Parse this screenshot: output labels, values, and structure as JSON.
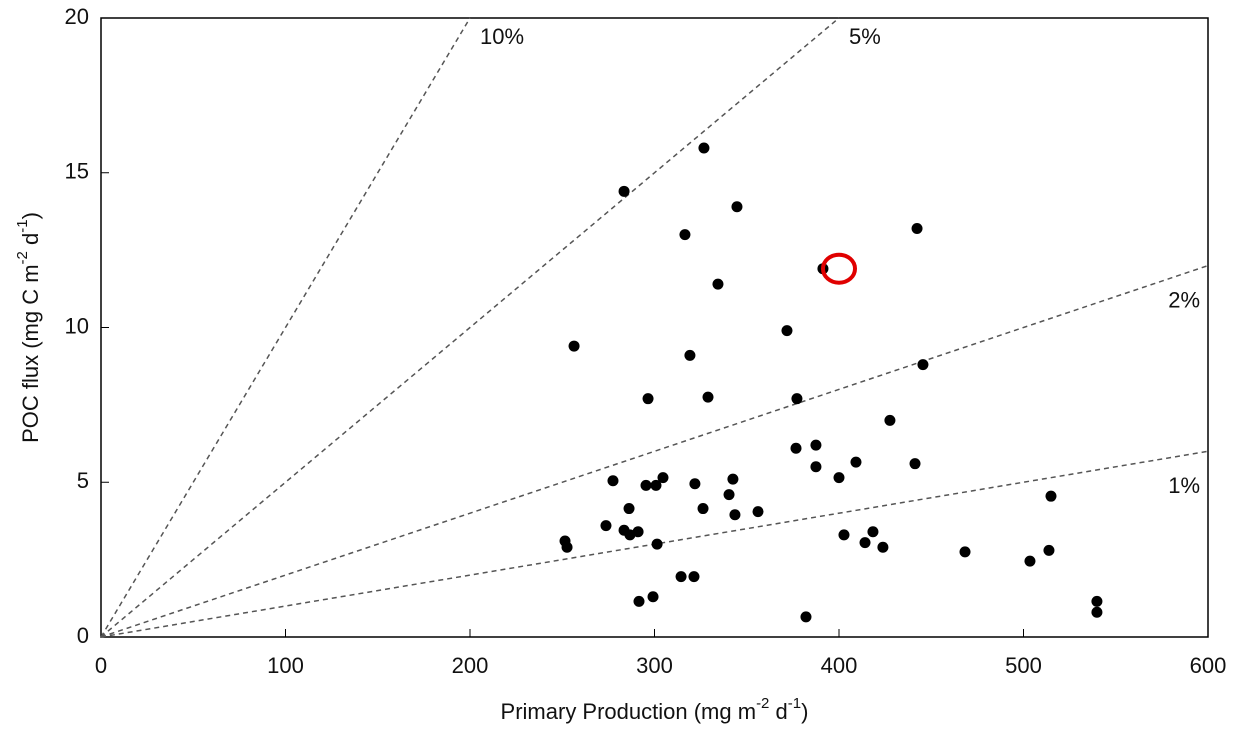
{
  "chart_data": {
    "type": "scatter",
    "xlabel": [
      "Primary Production (mg m",
      "-2",
      " d",
      "-1",
      ")"
    ],
    "ylabel": [
      "POC flux (mg C m",
      "-2",
      " d",
      "-1",
      ")"
    ],
    "x": [
      326.8,
      283.5,
      344.7,
      442.3,
      316.5,
      391.3,
      334.4,
      371.8,
      256.4,
      319.2,
      445.5,
      296.5,
      329.0,
      377.2,
      427.6,
      376.7,
      387.5,
      409.2,
      441.2,
      387.5,
      400.0,
      277.5,
      342.5,
      304.6,
      295.4,
      300.8,
      321.9,
      340.4,
      514.9,
      286.2,
      326.3,
      343.6,
      356.1,
      273.7,
      283.5,
      291.1,
      286.7,
      402.7,
      418.4,
      414.1,
      423.8,
      301.4,
      251.5,
      252.6,
      468.3,
      513.8,
      503.5,
      314.4,
      321.4,
      299.2,
      291.6,
      382.1,
      539.8,
      539.8
    ],
    "values": [
      15.8,
      14.4,
      13.9,
      13.2,
      13.0,
      11.9,
      11.4,
      9.9,
      9.4,
      9.1,
      8.8,
      7.7,
      7.75,
      7.7,
      7.0,
      6.1,
      6.2,
      5.65,
      5.6,
      5.5,
      5.15,
      5.05,
      5.1,
      5.15,
      4.9,
      4.9,
      4.95,
      4.6,
      4.55,
      4.15,
      4.15,
      3.95,
      4.05,
      3.6,
      3.45,
      3.4,
      3.3,
      3.3,
      3.4,
      3.05,
      2.9,
      3.0,
      3.1,
      2.9,
      2.75,
      2.8,
      2.45,
      1.95,
      1.95,
      1.3,
      1.15,
      0.65,
      1.15,
      0.8
    ],
    "color": "#000000",
    "ref_lines": [
      {
        "label": "10%",
        "slope": 10
      },
      {
        "label": "5%",
        "slope": 5
      },
      {
        "label": "2%",
        "slope": 2
      },
      {
        "label": "1%",
        "slope": 1
      }
    ],
    "highlight": {
      "x": 400,
      "y": 11.9,
      "color": "#e00000"
    },
    "xlim": [
      0,
      600
    ],
    "ylim": [
      0,
      20
    ],
    "xticks": [
      0,
      100,
      200,
      300,
      400,
      500,
      600
    ],
    "yticks": [
      0,
      5,
      10,
      15,
      20
    ]
  }
}
